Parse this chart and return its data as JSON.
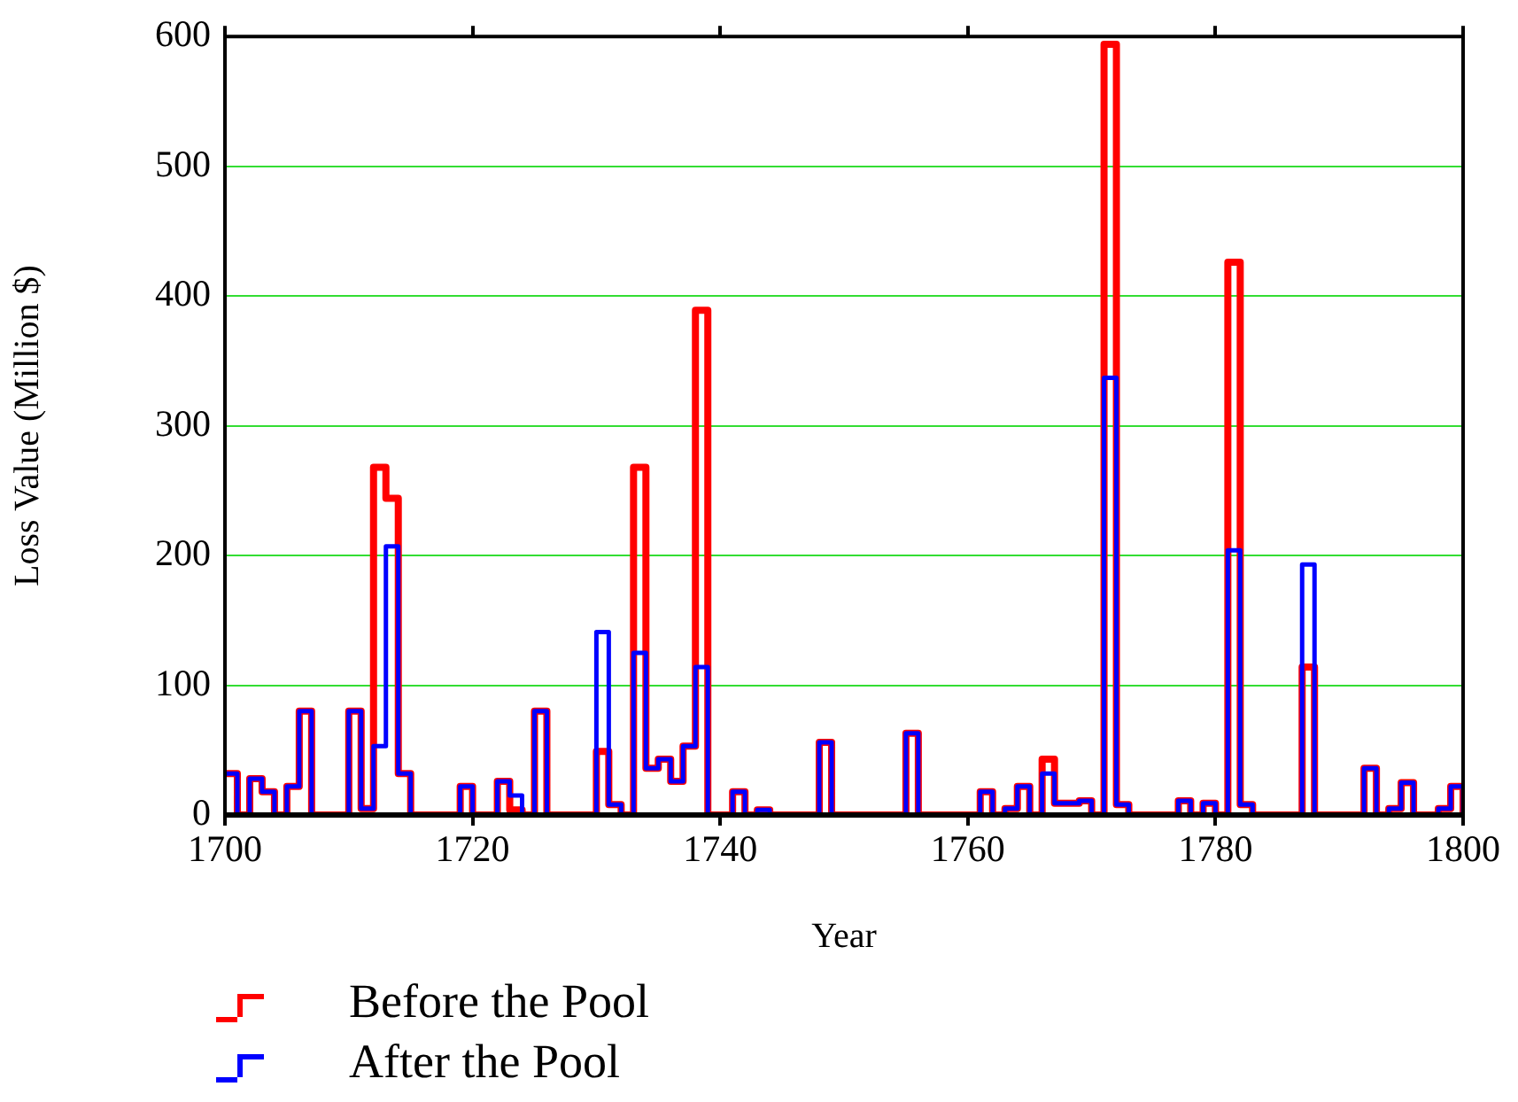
{
  "chart_data": {
    "type": "step",
    "xlabel": "Year",
    "ylabel": "Loss Value (Million $)",
    "x": [
      1700,
      1701,
      1702,
      1703,
      1704,
      1705,
      1706,
      1707,
      1708,
      1709,
      1710,
      1711,
      1712,
      1713,
      1714,
      1715,
      1716,
      1717,
      1718,
      1719,
      1720,
      1721,
      1722,
      1723,
      1724,
      1725,
      1726,
      1727,
      1728,
      1729,
      1730,
      1731,
      1732,
      1733,
      1734,
      1735,
      1736,
      1737,
      1738,
      1739,
      1740,
      1741,
      1742,
      1743,
      1744,
      1745,
      1746,
      1747,
      1748,
      1749,
      1750,
      1751,
      1752,
      1753,
      1754,
      1755,
      1756,
      1757,
      1758,
      1759,
      1760,
      1761,
      1762,
      1763,
      1764,
      1765,
      1766,
      1767,
      1768,
      1769,
      1770,
      1771,
      1772,
      1773,
      1774,
      1775,
      1776,
      1777,
      1778,
      1779,
      1780,
      1781,
      1782,
      1783,
      1784,
      1785,
      1786,
      1787,
      1788,
      1789,
      1790,
      1791,
      1792,
      1793,
      1794,
      1795,
      1796,
      1797,
      1798,
      1799,
      1800
    ],
    "series": [
      {
        "name": "Before the Pool",
        "color": "#ff0000",
        "values": [
          32,
          0,
          28,
          18,
          0,
          22,
          80,
          0,
          0,
          0,
          80,
          5,
          268,
          244,
          32,
          0,
          0,
          0,
          0,
          22,
          0,
          0,
          26,
          4,
          0,
          80,
          0,
          0,
          0,
          0,
          49,
          8,
          0,
          268,
          36,
          43,
          26,
          53,
          389,
          0,
          0,
          18,
          0,
          4,
          0,
          0,
          0,
          0,
          56,
          0,
          0,
          0,
          0,
          0,
          0,
          63,
          0,
          0,
          0,
          0,
          0,
          18,
          0,
          5,
          22,
          0,
          43,
          9,
          9,
          11,
          0,
          594,
          8,
          0,
          0,
          0,
          0,
          11,
          0,
          9,
          0,
          426,
          8,
          0,
          0,
          0,
          0,
          114,
          0,
          0,
          0,
          0,
          36,
          0,
          5,
          25,
          0,
          0,
          5,
          22,
          0
        ]
      },
      {
        "name": "After the Pool",
        "color": "#0000ff",
        "values": [
          32,
          0,
          28,
          18,
          0,
          22,
          80,
          0,
          0,
          0,
          80,
          5,
          53,
          207,
          32,
          0,
          0,
          0,
          0,
          22,
          0,
          0,
          26,
          15,
          0,
          80,
          0,
          0,
          0,
          0,
          141,
          8,
          0,
          125,
          36,
          43,
          26,
          53,
          114,
          0,
          0,
          18,
          0,
          4,
          0,
          0,
          0,
          0,
          56,
          0,
          0,
          0,
          0,
          0,
          0,
          63,
          0,
          0,
          0,
          0,
          0,
          18,
          0,
          5,
          22,
          0,
          32,
          9,
          9,
          11,
          0,
          337,
          8,
          0,
          0,
          0,
          0,
          11,
          0,
          9,
          0,
          204,
          8,
          0,
          0,
          0,
          0,
          193,
          0,
          0,
          0,
          0,
          36,
          0,
          5,
          25,
          0,
          0,
          5,
          22,
          0
        ]
      }
    ],
    "xlim": [
      1700,
      1800
    ],
    "xticks": [
      1700,
      1720,
      1740,
      1760,
      1780,
      1800
    ],
    "ylim": [
      0,
      600
    ],
    "yticks": [
      0,
      100,
      200,
      300,
      400,
      500,
      600
    ],
    "grid": "y",
    "legend": "bottom",
    "line_style": "solid",
    "marker": "none"
  }
}
